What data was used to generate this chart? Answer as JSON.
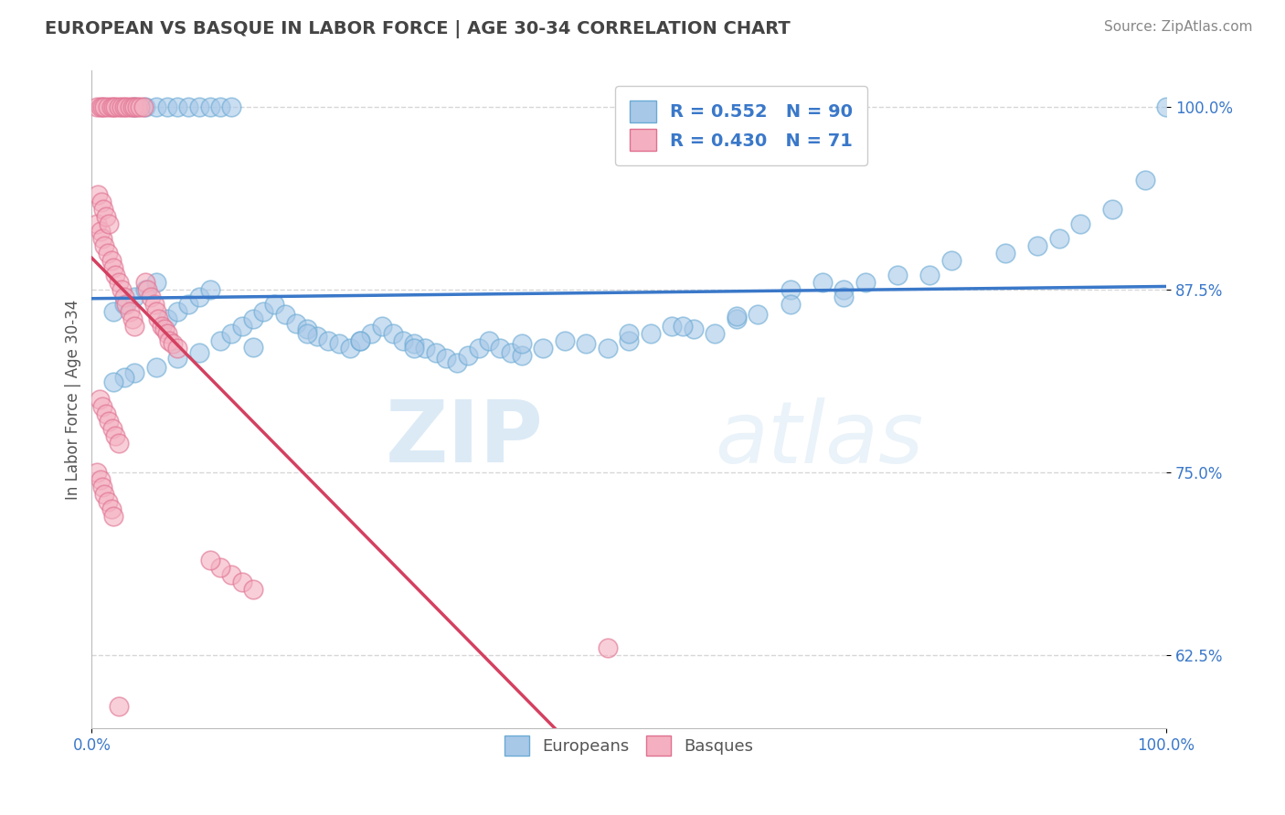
{
  "title": "EUROPEAN VS BASQUE IN LABOR FORCE | AGE 30-34 CORRELATION CHART",
  "source_text": "Source: ZipAtlas.com",
  "ylabel": "In Labor Force | Age 30-34",
  "watermark_zip": "ZIP",
  "watermark_atlas": "atlas",
  "R_european": 0.552,
  "N_european": 90,
  "R_basque": 0.43,
  "N_basque": 71,
  "blue_scatter_face": "#a8c8e8",
  "blue_scatter_edge": "#6aaad4",
  "pink_scatter_face": "#f4b0c0",
  "pink_scatter_edge": "#e07090",
  "blue_line_color": "#3a78c9",
  "pink_line_color": "#d44060",
  "xlim": [
    0.0,
    1.0
  ],
  "ylim": [
    0.575,
    1.025
  ],
  "yticks": [
    0.625,
    0.75,
    0.875,
    1.0
  ],
  "ytick_labels": [
    "62.5%",
    "75.0%",
    "87.5%",
    "100.0%"
  ],
  "xtick_labels": [
    "0.0%",
    "100.0%"
  ],
  "xtick_pos": [
    0.0,
    1.0
  ],
  "grid_color": "#cccccc",
  "bg_color": "#ffffff",
  "title_color": "#444444",
  "europeans_x": [
    0.02,
    0.03,
    0.04,
    0.05,
    0.06,
    0.07,
    0.08,
    0.09,
    0.1,
    0.11,
    0.12,
    0.13,
    0.14,
    0.15,
    0.16,
    0.17,
    0.18,
    0.19,
    0.2,
    0.21,
    0.22,
    0.23,
    0.24,
    0.25,
    0.26,
    0.27,
    0.28,
    0.29,
    0.3,
    0.31,
    0.32,
    0.33,
    0.34,
    0.35,
    0.36,
    0.37,
    0.38,
    0.39,
    0.4,
    0.42,
    0.44,
    0.46,
    0.48,
    0.5,
    0.52,
    0.54,
    0.56,
    0.58,
    0.6,
    0.62,
    0.04,
    0.05,
    0.06,
    0.07,
    0.08,
    0.09,
    0.1,
    0.11,
    0.12,
    0.13,
    0.65,
    0.68,
    0.7,
    0.72,
    0.75,
    0.78,
    0.8,
    0.85,
    0.88,
    0.9,
    0.92,
    0.95,
    0.98,
    1.0,
    0.5,
    0.55,
    0.6,
    0.65,
    0.7,
    0.3,
    0.25,
    0.2,
    0.15,
    0.1,
    0.08,
    0.06,
    0.04,
    0.03,
    0.02,
    0.4
  ],
  "europeans_y": [
    0.86,
    0.865,
    0.87,
    0.875,
    0.88,
    0.855,
    0.86,
    0.865,
    0.87,
    0.875,
    0.84,
    0.845,
    0.85,
    0.855,
    0.86,
    0.865,
    0.858,
    0.852,
    0.848,
    0.843,
    0.84,
    0.838,
    0.835,
    0.84,
    0.845,
    0.85,
    0.845,
    0.84,
    0.838,
    0.835,
    0.832,
    0.828,
    0.825,
    0.83,
    0.835,
    0.84,
    0.835,
    0.832,
    0.83,
    0.835,
    0.84,
    0.838,
    0.835,
    0.84,
    0.845,
    0.85,
    0.848,
    0.845,
    0.855,
    0.858,
    1.0,
    1.0,
    1.0,
    1.0,
    1.0,
    1.0,
    1.0,
    1.0,
    1.0,
    1.0,
    0.875,
    0.88,
    0.875,
    0.88,
    0.885,
    0.885,
    0.895,
    0.9,
    0.905,
    0.91,
    0.92,
    0.93,
    0.95,
    1.0,
    0.845,
    0.85,
    0.857,
    0.865,
    0.87,
    0.835,
    0.84,
    0.845,
    0.836,
    0.832,
    0.828,
    0.822,
    0.818,
    0.815,
    0.812,
    0.838
  ],
  "basques_x": [
    0.005,
    0.008,
    0.01,
    0.012,
    0.015,
    0.018,
    0.02,
    0.022,
    0.025,
    0.028,
    0.03,
    0.032,
    0.035,
    0.038,
    0.04,
    0.042,
    0.045,
    0.048,
    0.05,
    0.052,
    0.055,
    0.058,
    0.06,
    0.062,
    0.065,
    0.068,
    0.07,
    0.072,
    0.075,
    0.08,
    0.005,
    0.008,
    0.01,
    0.012,
    0.015,
    0.018,
    0.02,
    0.022,
    0.025,
    0.028,
    0.03,
    0.032,
    0.035,
    0.038,
    0.04,
    0.006,
    0.009,
    0.011,
    0.013,
    0.016,
    0.007,
    0.01,
    0.013,
    0.016,
    0.019,
    0.022,
    0.025,
    0.005,
    0.008,
    0.01,
    0.012,
    0.015,
    0.018,
    0.02,
    0.13,
    0.14,
    0.15,
    0.12,
    0.11,
    0.48,
    0.025
  ],
  "basques_y": [
    1.0,
    1.0,
    1.0,
    1.0,
    1.0,
    1.0,
    1.0,
    1.0,
    1.0,
    1.0,
    1.0,
    1.0,
    1.0,
    1.0,
    1.0,
    1.0,
    1.0,
    1.0,
    0.88,
    0.875,
    0.87,
    0.865,
    0.86,
    0.855,
    0.85,
    0.848,
    0.845,
    0.84,
    0.838,
    0.835,
    0.92,
    0.915,
    0.91,
    0.905,
    0.9,
    0.895,
    0.89,
    0.885,
    0.88,
    0.875,
    0.87,
    0.865,
    0.86,
    0.855,
    0.85,
    0.94,
    0.935,
    0.93,
    0.925,
    0.92,
    0.8,
    0.795,
    0.79,
    0.785,
    0.78,
    0.775,
    0.77,
    0.75,
    0.745,
    0.74,
    0.735,
    0.73,
    0.725,
    0.72,
    0.68,
    0.675,
    0.67,
    0.685,
    0.69,
    0.63,
    0.59
  ]
}
